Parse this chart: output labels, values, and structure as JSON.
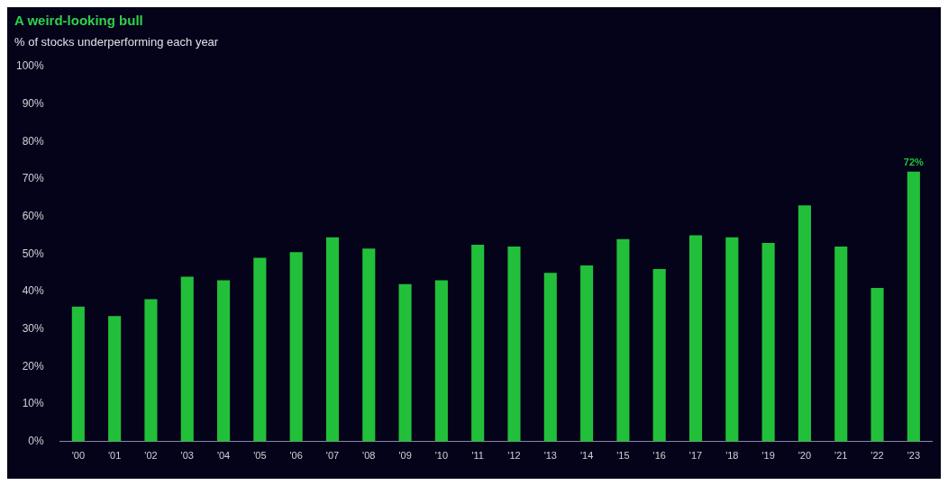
{
  "chart_data": {
    "type": "bar",
    "title": "A weird-looking bull",
    "subtitle": "% of stocks underperforming each year",
    "categories": [
      "'00",
      "'01",
      "'02",
      "'03",
      "'04",
      "'05",
      "'06",
      "'07",
      "'08",
      "'09",
      "'10",
      "'11",
      "'12",
      "'13",
      "'14",
      "'15",
      "'16",
      "'17",
      "'18",
      "'19",
      "'20",
      "'21",
      "'22",
      "'23"
    ],
    "values": [
      36,
      33.5,
      38,
      44,
      43,
      49,
      50.5,
      54.5,
      51.5,
      42,
      43,
      52.5,
      52,
      45,
      47,
      54,
      46,
      55,
      54.5,
      53,
      63,
      52,
      41,
      72
    ],
    "value_labels": [
      null,
      null,
      null,
      null,
      null,
      null,
      null,
      null,
      null,
      null,
      null,
      null,
      null,
      null,
      null,
      null,
      null,
      null,
      null,
      null,
      null,
      null,
      null,
      "72%"
    ],
    "color": "#22c03a",
    "ylim": [
      0,
      100
    ],
    "yticks": [
      {
        "value": 0,
        "label": "0%"
      },
      {
        "value": 10,
        "label": "10%"
      },
      {
        "value": 20,
        "label": "20%"
      },
      {
        "value": 30,
        "label": "30%"
      },
      {
        "value": 40,
        "label": "40%"
      },
      {
        "value": 50,
        "label": "50%"
      },
      {
        "value": 60,
        "label": "60%"
      },
      {
        "value": 70,
        "label": "70%"
      },
      {
        "value": 80,
        "label": "80%"
      },
      {
        "value": 90,
        "label": "90%"
      },
      {
        "value": 100,
        "label": "100%"
      }
    ],
    "grid": false
  }
}
